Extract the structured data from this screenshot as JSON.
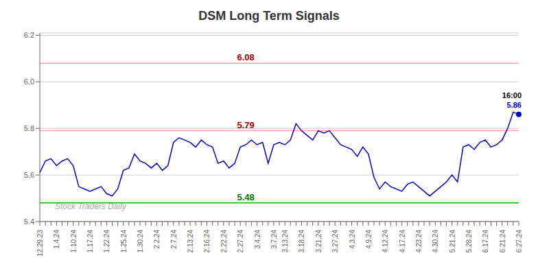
{
  "chart_data": {
    "type": "line",
    "title": "DSM Long Term Signals",
    "categories": [
      "12.29.23",
      null,
      null,
      "1.4.24",
      null,
      null,
      "1.10.24",
      null,
      null,
      "1.17.24",
      null,
      null,
      "1.22.24",
      null,
      null,
      "1.25.24",
      null,
      null,
      "1.30.24",
      null,
      null,
      "2.2.24",
      null,
      null,
      "2.7.24",
      null,
      null,
      "2.13.24",
      null,
      null,
      "2.16.24",
      null,
      null,
      "2.22.24",
      null,
      null,
      "2.27.24",
      null,
      null,
      "3.4.24",
      null,
      null,
      "3.7.24",
      null,
      "3.13.24",
      null,
      null,
      "3.18.24",
      null,
      null,
      "3.21.24",
      null,
      null,
      "3.27.24",
      null,
      null,
      "4.3.24",
      null,
      null,
      "4.9.24",
      null,
      null,
      "4.12.24",
      null,
      null,
      "4.17.24",
      null,
      null,
      "4.23.24",
      null,
      null,
      "4.30.24",
      null,
      null,
      "5.21.24",
      null,
      null,
      "5.28.24",
      null,
      null,
      "6.17.24",
      null,
      null,
      "6.21.24",
      null,
      null,
      "6.27.24"
    ],
    "values": [
      5.61,
      5.66,
      5.67,
      5.64,
      5.66,
      5.67,
      5.64,
      5.55,
      5.54,
      5.53,
      5.54,
      5.55,
      5.52,
      5.51,
      5.54,
      5.62,
      5.63,
      5.69,
      5.66,
      5.65,
      5.63,
      5.65,
      5.62,
      5.64,
      5.74,
      5.76,
      5.75,
      5.74,
      5.72,
      5.75,
      5.73,
      5.72,
      5.65,
      5.66,
      5.63,
      5.65,
      5.72,
      5.73,
      5.75,
      5.73,
      5.74,
      5.65,
      5.73,
      5.74,
      5.73,
      5.75,
      5.82,
      5.79,
      5.77,
      5.75,
      5.79,
      5.78,
      5.79,
      5.76,
      5.73,
      5.72,
      5.71,
      5.68,
      5.72,
      5.69,
      5.59,
      5.54,
      5.57,
      5.55,
      5.54,
      5.53,
      5.56,
      5.57,
      5.55,
      5.53,
      5.51,
      5.53,
      5.55,
      5.57,
      5.6,
      5.57,
      5.72,
      5.73,
      5.71,
      5.74,
      5.75,
      5.72,
      5.73,
      5.75,
      5.8,
      5.87,
      5.86
    ],
    "color": "#0000cc",
    "ylim": [
      5.4,
      6.21
    ],
    "yticks": [
      5.4,
      5.6,
      5.8,
      {
        "value": 6.0,
        "label": "6.0"
      },
      6.2
    ],
    "grid": true,
    "reference_lines": [
      {
        "y": 6.08,
        "color": "#ffaaaa"
      },
      {
        "y": 5.79,
        "color": "#ffaaaa"
      },
      {
        "y": 5.48,
        "color": "#00bb00"
      }
    ],
    "annotations": [
      {
        "text": "6.08",
        "y": 6.08,
        "color": "#aa0000"
      },
      {
        "text": "5.79",
        "y": 5.79,
        "color": "#aa0000"
      },
      {
        "text": "5.48",
        "y": 5.48,
        "color": "#007700"
      }
    ],
    "last_point_labels": [
      {
        "text": "16:00",
        "color": "#000000"
      },
      {
        "text": "5.86",
        "color": "#0000cc"
      }
    ],
    "watermark": "Stock Traders Daily"
  }
}
